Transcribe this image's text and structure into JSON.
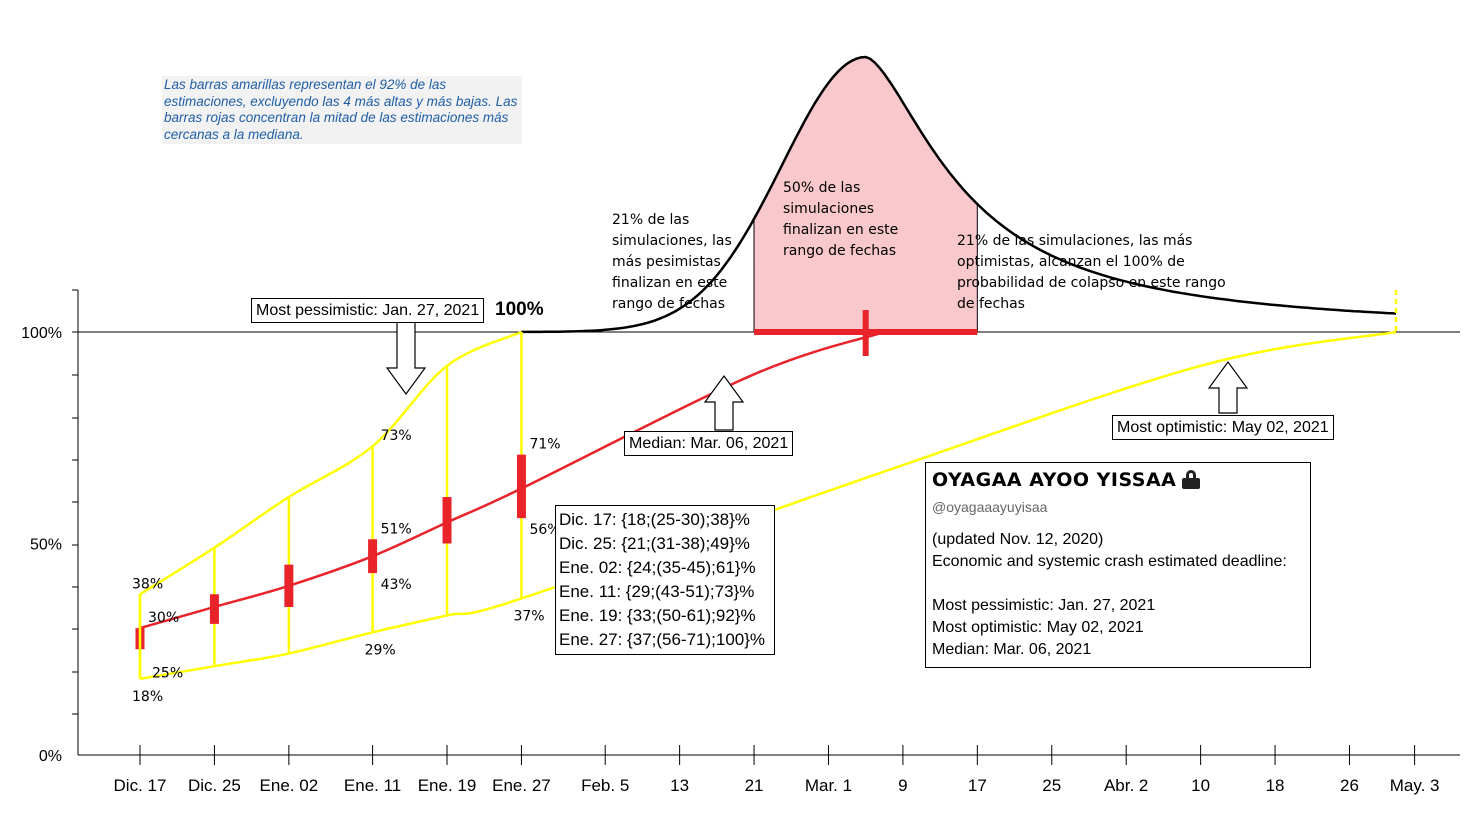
{
  "note": "Las barras amarillas representan el 92% de las estimaciones, excluyendo las 4 más altas y más bajas. Las barras rojas concentran la mitad de las estimaciones más cercanas a la mediana.",
  "annotations": {
    "left": "21% de las simulaciones, las más pesimistas finalizan en este rango de fechas",
    "center": "50% de las simulaciones finalizan en este rango de fechas",
    "right": "21% de las simulaciones, las más optimistas, alcanzan el 100% de probabilidad de colapso en este rango de fechas"
  },
  "callouts": {
    "pessimistic": "Most pessimistic:  Jan. 27, 2021",
    "hundred": "100%",
    "median": "Median: Mar. 06, 2021",
    "optimistic": "Most optimistic:   May 02, 2021"
  },
  "ranges_box": [
    "Dic. 17: {18;(25-30);38}%",
    "Dic. 25: {21;(31-38);49}%",
    "Ene. 02: {24;(35-45);61}%",
    "Ene. 11: {29;(43-51);73}%",
    "Ene. 19: {33;(50-61);92}%",
    "Ene. 27: {37;(56-71);100}%"
  ],
  "card": {
    "name": "OYAGAA AYOO YISSAA",
    "handle": "@oyagaaayuyisaa",
    "updated": "(updated Nov. 12, 2020)",
    "subtitle": "Economic and systemic crash estimated deadline:",
    "pessimistic": "Most pessimistic:  Jan. 27, 2021",
    "optimistic": "Most optimistic:   May 02, 2021",
    "median": "Median: Mar. 06, 2021"
  },
  "colors": {
    "yellow": "#ffff00",
    "red": "#e8232a",
    "pink": "#f8c8cc",
    "black": "#000000",
    "note_bg": "#f2f2f2",
    "note_text": "#1f5fa8"
  },
  "chart_data": {
    "type": "line",
    "y_ticks": [
      "0%",
      "50%",
      "100%"
    ],
    "ylim": [
      0,
      100
    ],
    "x_ticks": [
      "Dic. 17",
      "Dic. 25",
      "Ene. 02",
      "Ene. 11",
      "Ene. 19",
      "Ene. 27",
      "Feb. 5",
      "13",
      "21",
      "Mar. 1",
      "9",
      "17",
      "25",
      "Abr. 2",
      "10",
      "18",
      "26",
      "May. 3"
    ],
    "x_tick_days": [
      0,
      8,
      16,
      25,
      33,
      41,
      50,
      58,
      66,
      74,
      82,
      90,
      98,
      106,
      114,
      122,
      130,
      137
    ],
    "estimate_points": [
      {
        "date": "Dic. 17",
        "day": 0,
        "min": 18,
        "q_low": 25,
        "q_high": 30,
        "max": 38
      },
      {
        "date": "Dic. 25",
        "day": 8,
        "min": 21,
        "q_low": 31,
        "q_high": 38,
        "max": 49
      },
      {
        "date": "Ene. 02",
        "day": 16,
        "min": 24,
        "q_low": 35,
        "q_high": 45,
        "max": 61
      },
      {
        "date": "Ene. 11",
        "day": 25,
        "min": 29,
        "q_low": 43,
        "q_high": 51,
        "max": 73
      },
      {
        "date": "Ene. 19",
        "day": 33,
        "min": 33,
        "q_low": 50,
        "q_high": 61,
        "max": 92
      },
      {
        "date": "Ene. 27",
        "day": 41,
        "min": 37,
        "q_low": 56,
        "q_high": 71,
        "max": 100
      }
    ],
    "point_labels": [
      {
        "text": "38%",
        "day": 0,
        "value": 38,
        "side": "above-left"
      },
      {
        "text": "30%",
        "day": 0,
        "value": 30,
        "side": "right"
      },
      {
        "text": "25%",
        "day": 0,
        "value": 25,
        "side": "below-right"
      },
      {
        "text": "18%",
        "day": 0,
        "value": 18,
        "side": "below"
      },
      {
        "text": "73%",
        "day": 25,
        "value": 73,
        "side": "right"
      },
      {
        "text": "51%",
        "day": 25,
        "value": 51,
        "side": "right"
      },
      {
        "text": "43%",
        "day": 25,
        "value": 43,
        "side": "right-below"
      },
      {
        "text": "29%",
        "day": 25,
        "value": 29,
        "side": "below"
      },
      {
        "text": "71%",
        "day": 41,
        "value": 71,
        "side": "right"
      },
      {
        "text": "56%",
        "day": 41,
        "value": 56,
        "side": "right-below"
      },
      {
        "text": "37%",
        "day": 41,
        "value": 37,
        "side": "below"
      }
    ],
    "series": [
      {
        "name": "Most pessimistic",
        "color": "#ffff00",
        "days": [
          0,
          8,
          16,
          25,
          33,
          41
        ],
        "values": [
          38,
          49,
          61,
          73,
          92,
          100
        ]
      },
      {
        "name": "Median",
        "color": "#e8232a",
        "days": [
          0,
          8,
          16,
          25,
          33,
          41,
          66,
          80
        ],
        "values": [
          30,
          35,
          40,
          47,
          55,
          63,
          90,
          100
        ]
      },
      {
        "name": "Most optimistic",
        "color": "#ffff00",
        "days": [
          0,
          8,
          16,
          25,
          33,
          41,
          80,
          114,
          135
        ],
        "values": [
          18,
          21,
          24,
          29,
          33,
          37,
          67,
          92,
          100
        ]
      }
    ],
    "distribution": {
      "type": "area",
      "peak_day": 78,
      "range_days": [
        66,
        90
      ]
    },
    "median_marker": {
      "day": 78,
      "value": 100
    }
  }
}
